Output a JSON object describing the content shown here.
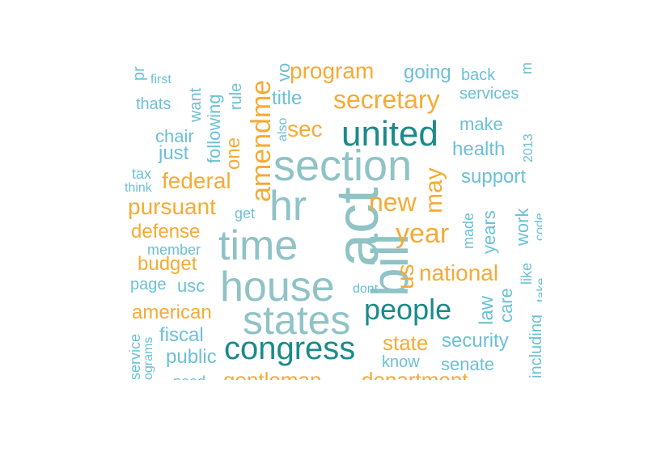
{
  "colors": {
    "teal": "#1b8a8a",
    "gray_blue": "#8fc3c6",
    "light_blue": "#6cc0d6",
    "orange": "#f5ab35"
  },
  "words": {
    "act": {
      "text": "act",
      "color": "#8fc3c6"
    },
    "bill": {
      "text": "bill",
      "color": "#8fc3c6"
    },
    "section": {
      "text": "section",
      "color": "#8fc3c6"
    },
    "hr": {
      "text": "hr",
      "color": "#8fc3c6"
    },
    "time": {
      "text": "time",
      "color": "#8fc3c6"
    },
    "house": {
      "text": "house",
      "color": "#8fc3c6"
    },
    "states": {
      "text": "states",
      "color": "#8fc3c6"
    },
    "congress": {
      "text": "congress",
      "color": "#1b8a8a"
    },
    "united": {
      "text": "united",
      "color": "#1b8a8a"
    },
    "people": {
      "text": "people",
      "color": "#1b8a8a"
    },
    "amendment": {
      "text": "amendme",
      "color": "#f5ab35"
    },
    "secretary": {
      "text": "secretary",
      "color": "#f5ab35"
    },
    "program": {
      "text": "program",
      "color": "#f5ab35"
    },
    "year": {
      "text": "year",
      "color": "#f5ab35"
    },
    "new": {
      "text": "new",
      "color": "#f5ab35"
    },
    "may": {
      "text": "may",
      "color": "#f5ab35"
    },
    "us": {
      "text": "us",
      "color": "#f5ab35"
    },
    "national": {
      "text": "national",
      "color": "#f5ab35"
    },
    "federal": {
      "text": "federal",
      "color": "#f5ab35"
    },
    "pursuant": {
      "text": "pursuant",
      "color": "#f5ab35"
    },
    "defense": {
      "text": "defense",
      "color": "#f5ab35"
    },
    "budget": {
      "text": "budget",
      "color": "#f5ab35"
    },
    "american": {
      "text": "american",
      "color": "#f5ab35"
    },
    "state": {
      "text": "state",
      "color": "#f5ab35"
    },
    "sec": {
      "text": "sec",
      "color": "#f5ab35"
    },
    "one": {
      "text": "one",
      "color": "#f5ab35"
    },
    "gentleman": {
      "text": "gentleman",
      "color": "#f5ab35"
    },
    "department": {
      "text": "department",
      "color": "#f5ab35"
    },
    "following": {
      "text": "following",
      "color": "#6cc0d6"
    },
    "title": {
      "text": "title",
      "color": "#6cc0d6"
    },
    "going": {
      "text": "going",
      "color": "#6cc0d6"
    },
    "back": {
      "text": "back",
      "color": "#6cc0d6"
    },
    "services": {
      "text": "services",
      "color": "#6cc0d6"
    },
    "make": {
      "text": "make",
      "color": "#6cc0d6"
    },
    "health": {
      "text": "health",
      "color": "#6cc0d6"
    },
    "support": {
      "text": "support",
      "color": "#6cc0d6"
    },
    "years": {
      "text": "years",
      "color": "#6cc0d6"
    },
    "work": {
      "text": "work",
      "color": "#6cc0d6"
    },
    "made": {
      "text": "made",
      "color": "#6cc0d6"
    },
    "code": {
      "text": "code",
      "color": "#6cc0d6"
    },
    "like": {
      "text": "like",
      "color": "#6cc0d6"
    },
    "law": {
      "text": "law",
      "color": "#6cc0d6"
    },
    "care": {
      "text": "care",
      "color": "#6cc0d6"
    },
    "take": {
      "text": "take",
      "color": "#6cc0d6"
    },
    "including": {
      "text": "including",
      "color": "#6cc0d6"
    },
    "security": {
      "text": "security",
      "color": "#6cc0d6"
    },
    "senate": {
      "text": "senate",
      "color": "#6cc0d6"
    },
    "know": {
      "text": "know",
      "color": "#6cc0d6"
    },
    "dont": {
      "text": "dont",
      "color": "#6cc0d6"
    },
    "year2013": {
      "text": "2013",
      "color": "#6cc0d6"
    },
    "rule": {
      "text": "rule",
      "color": "#6cc0d6"
    },
    "want": {
      "text": "want",
      "color": "#6cc0d6"
    },
    "first": {
      "text": "first",
      "color": "#6cc0d6"
    },
    "thats": {
      "text": "thats",
      "color": "#6cc0d6"
    },
    "chair": {
      "text": "chair",
      "color": "#6cc0d6"
    },
    "just": {
      "text": "just",
      "color": "#6cc0d6"
    },
    "tax": {
      "text": "tax",
      "color": "#6cc0d6"
    },
    "think": {
      "text": "think",
      "color": "#6cc0d6"
    },
    "get": {
      "text": "get",
      "color": "#6cc0d6"
    },
    "member": {
      "text": "member",
      "color": "#6cc0d6"
    },
    "page": {
      "text": "page",
      "color": "#6cc0d6"
    },
    "usc": {
      "text": "usc",
      "color": "#6cc0d6"
    },
    "fiscal": {
      "text": "fiscal",
      "color": "#6cc0d6"
    },
    "public": {
      "text": "public",
      "color": "#6cc0d6"
    },
    "service": {
      "text": "service",
      "color": "#6cc0d6"
    },
    "programs": {
      "text": "ograms",
      "color": "#6cc0d6"
    },
    "also": {
      "text": "also",
      "color": "#6cc0d6"
    },
    "vote": {
      "text": "vo",
      "color": "#6cc0d6"
    },
    "need": {
      "text": "need",
      "color": "#6cc0d6"
    },
    "pr": {
      "text": "pr",
      "color": "#6cc0d6"
    },
    "m": {
      "text": "m",
      "color": "#6cc0d6"
    }
  }
}
